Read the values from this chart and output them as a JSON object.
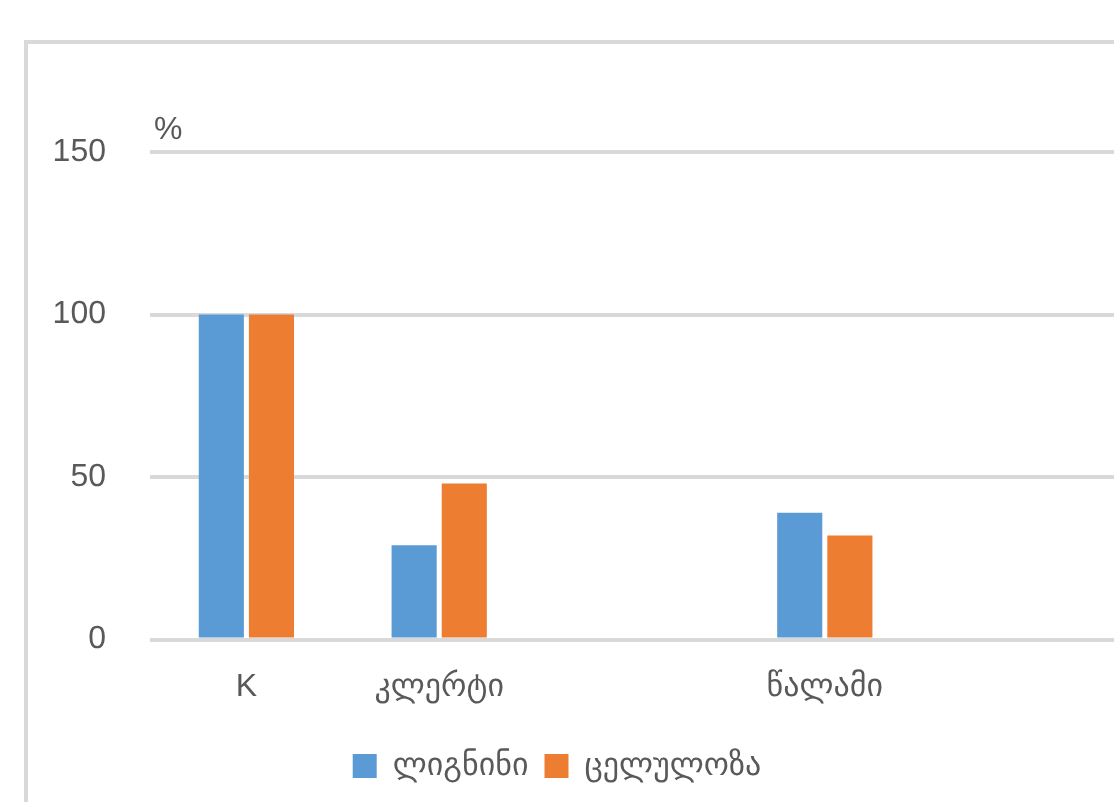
{
  "chart_data": {
    "type": "bar",
    "ylabel": "%",
    "categories": [
      "K",
      "კლერტი",
      null,
      "წალამი",
      null
    ],
    "series": [
      {
        "name": "ლიგნინი",
        "color": "#5b9bd5",
        "values": [
          100,
          29,
          null,
          39,
          null
        ]
      },
      {
        "name": "ცელულოზა",
        "color": "#ed7d31",
        "values": [
          100,
          48,
          null,
          32,
          null
        ]
      }
    ],
    "ylim": [
      0,
      150
    ],
    "yticks": [
      0,
      50,
      100,
      150
    ],
    "grid": "y",
    "legend": "bottom"
  }
}
